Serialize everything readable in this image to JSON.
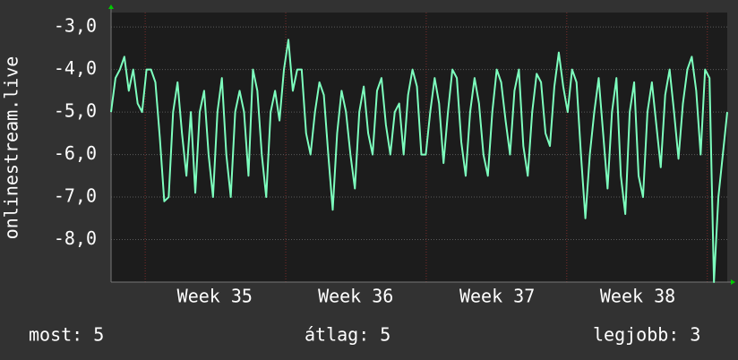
{
  "chart_data": {
    "type": "line",
    "ylabel": "onlinestream.live",
    "series": [
      {
        "name": "onlinestream.live",
        "color": "#7dffbe",
        "values": [
          -5.0,
          -4.2,
          -4.0,
          -3.7,
          -4.5,
          -4.0,
          -4.8,
          -5.0,
          -4.0,
          -4.0,
          -4.3,
          -5.6,
          -7.1,
          -7.0,
          -5.0,
          -4.3,
          -5.5,
          -6.5,
          -5.0,
          -6.9,
          -5.0,
          -4.5,
          -6.0,
          -7.0,
          -5.0,
          -4.2,
          -6.0,
          -7.0,
          -5.0,
          -4.5,
          -5.0,
          -6.5,
          -4.0,
          -4.5,
          -6.0,
          -7.0,
          -5.0,
          -4.5,
          -5.2,
          -4.0,
          -3.3,
          -4.5,
          -4.0,
          -4.0,
          -5.5,
          -6.0,
          -5.0,
          -4.3,
          -4.6,
          -6.0,
          -7.3,
          -5.5,
          -4.5,
          -5.0,
          -6.0,
          -6.8,
          -5.0,
          -4.4,
          -5.5,
          -6.0,
          -4.5,
          -4.2,
          -5.3,
          -6.0,
          -5.0,
          -4.8,
          -6.0,
          -4.6,
          -4.0,
          -4.4,
          -6.0,
          -6.0,
          -5.0,
          -4.2,
          -4.8,
          -6.2,
          -5.0,
          -4.0,
          -4.2,
          -5.7,
          -6.5,
          -5.0,
          -4.2,
          -4.8,
          -6.0,
          -6.5,
          -5.0,
          -4.0,
          -4.3,
          -5.2,
          -6.0,
          -4.5,
          -4.0,
          -5.8,
          -6.5,
          -5.0,
          -4.1,
          -4.3,
          -5.5,
          -5.8,
          -4.4,
          -3.6,
          -4.4,
          -5.0,
          -4.0,
          -4.3,
          -6.0,
          -7.5,
          -6.0,
          -5.0,
          -4.2,
          -5.5,
          -6.8,
          -5.0,
          -4.2,
          -6.5,
          -7.4,
          -5.0,
          -4.3,
          -6.5,
          -7.0,
          -5.0,
          -4.3,
          -5.3,
          -6.3,
          -4.6,
          -4.0,
          -5.0,
          -6.1,
          -4.8,
          -4.0,
          -3.7,
          -4.5,
          -6.0,
          -4.0,
          -4.2,
          -9.0,
          -7.0,
          -6.0,
          -5.0
        ]
      }
    ],
    "xlim": [
      0,
      139
    ],
    "xticks": [
      {
        "value": 23.4,
        "label": "Week 35"
      },
      {
        "value": 55.2,
        "label": "Week 36"
      },
      {
        "value": 87.1,
        "label": "Week 37"
      },
      {
        "value": 118.8,
        "label": "Week 38"
      }
    ],
    "xgrid_lines": [
      7.7,
      39.4,
      71.1,
      102.8,
      134.5
    ],
    "ylim": [
      -9.0,
      -2.66
    ],
    "yticks": [
      {
        "value": -3,
        "label": "-3,0"
      },
      {
        "value": -4,
        "label": "-4,0"
      },
      {
        "value": -5,
        "label": "-5,0"
      },
      {
        "value": -6,
        "label": "-6,0"
      },
      {
        "value": -7,
        "label": "-7,0"
      },
      {
        "value": -8,
        "label": "-8,0"
      }
    ],
    "grid": true,
    "footer": {
      "current": "most: 5",
      "average": "átlag: 5",
      "best": "legjobb: 3"
    }
  }
}
